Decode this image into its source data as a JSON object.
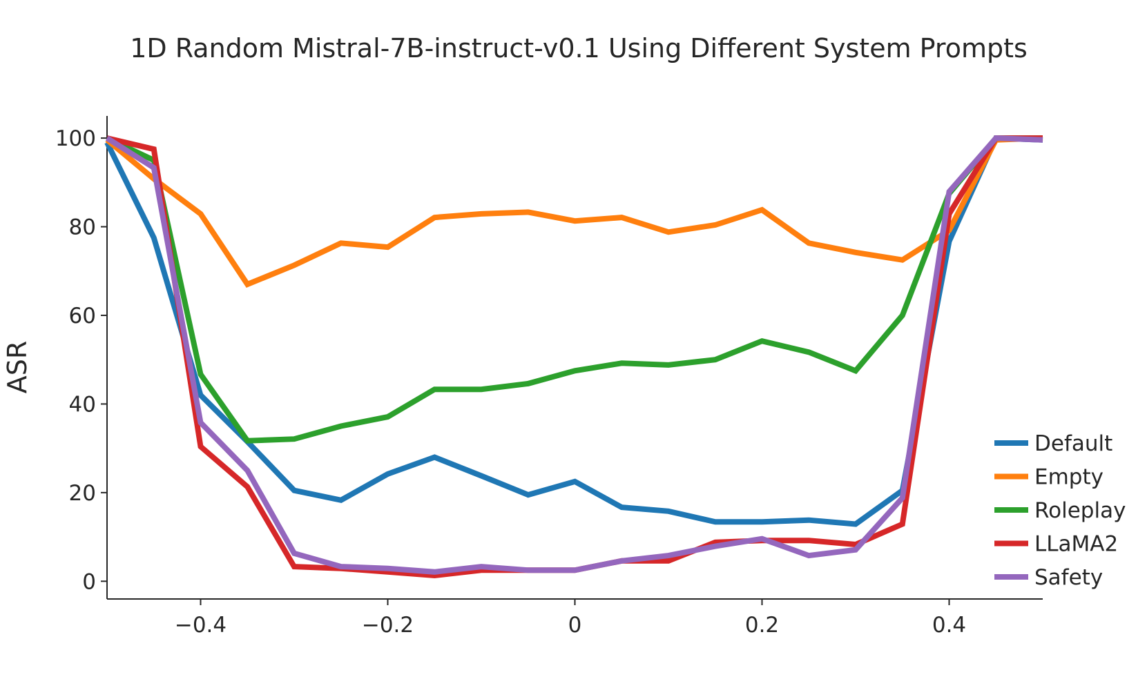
{
  "chart_data": {
    "type": "line",
    "title": "1D Random Mistral-7B-instruct-v0.1 Using Different System Prompts",
    "xlabel": "",
    "ylabel": "ASR",
    "xlim": [
      -0.5,
      0.5
    ],
    "ylim": [
      -4,
      105
    ],
    "xticks": [
      -0.4,
      -0.2,
      0,
      0.2,
      0.4
    ],
    "xtick_labels": [
      "−0.4",
      "−0.2",
      "0",
      "0.2",
      "0.4"
    ],
    "yticks": [
      0,
      20,
      40,
      60,
      80,
      100
    ],
    "ytick_labels": [
      "0",
      "20",
      "40",
      "60",
      "80",
      "100"
    ],
    "grid": false,
    "legend_position": "lower-right",
    "x": [
      -0.5,
      -0.45,
      -0.4,
      -0.35,
      -0.3,
      -0.25,
      -0.2,
      -0.15,
      -0.1,
      -0.05,
      0,
      0.05,
      0.1,
      0.15,
      0.2,
      0.25,
      0.3,
      0.35,
      0.4,
      0.45,
      0.5
    ],
    "series": [
      {
        "name": "Default",
        "color": "#1f77b4",
        "values": [
          99,
          77.5,
          42,
          31.5,
          20.5,
          18.3,
          24.2,
          28,
          23.8,
          19.5,
          22.5,
          16.7,
          15.8,
          13.4,
          13.4,
          13.8,
          12.9,
          20.5,
          76.7,
          100,
          99.6
        ]
      },
      {
        "name": "Empty",
        "color": "#ff7f0e",
        "values": [
          99.6,
          90.8,
          82.9,
          67,
          71.3,
          76.3,
          75.4,
          82.1,
          82.9,
          83.3,
          81.3,
          82.1,
          78.8,
          80.4,
          83.8,
          76.3,
          74.2,
          72.5,
          79.2,
          99.6,
          100
        ]
      },
      {
        "name": "Roleplay",
        "color": "#2ca02c",
        "values": [
          100,
          95,
          46.7,
          31.7,
          32.1,
          35,
          37.1,
          43.3,
          43.3,
          44.6,
          47.5,
          49.2,
          48.8,
          50,
          54.2,
          51.7,
          47.5,
          60,
          87.5,
          100,
          100
        ]
      },
      {
        "name": "LLaMA2",
        "color": "#d62728",
        "values": [
          100,
          97.5,
          30.4,
          21.3,
          3.3,
          2.9,
          2.1,
          1.3,
          2.5,
          2.5,
          2.5,
          4.6,
          4.6,
          8.8,
          9.2,
          9.2,
          8.3,
          12.9,
          82.9,
          100,
          100
        ]
      },
      {
        "name": "Safety",
        "color": "#9467bd",
        "values": [
          100,
          93.3,
          35.8,
          25,
          6.3,
          3.3,
          2.9,
          2.1,
          3.3,
          2.5,
          2.5,
          4.6,
          5.8,
          7.9,
          9.6,
          5.8,
          7.1,
          18.8,
          87.9,
          100,
          99.6
        ]
      }
    ]
  }
}
